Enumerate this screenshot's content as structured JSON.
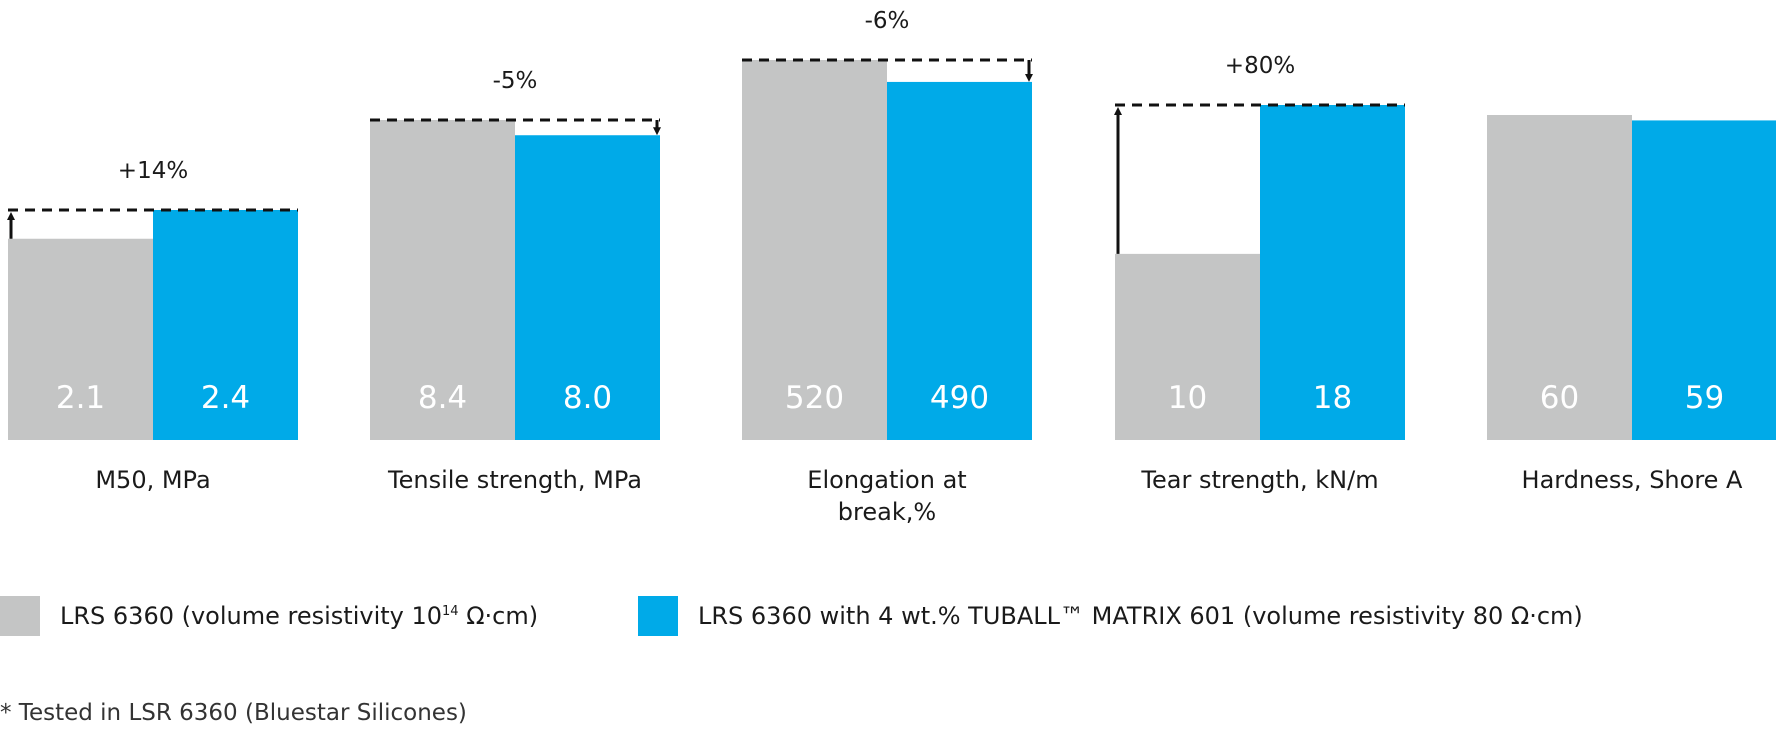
{
  "chart_data": {
    "type": "bar",
    "categories": [
      "M50, MPa",
      "Tensile strength, MPa",
      "Elongation at break,%",
      "Tear strength, kN/m",
      "Hardness, Shore A"
    ],
    "category_lines": [
      [
        "M50, MPa"
      ],
      [
        "Tensile strength, MPa"
      ],
      [
        "Elongation at",
        "break,%"
      ],
      [
        "Tear strength, kN/m"
      ],
      [
        "Hardness, Shore A"
      ]
    ],
    "series": [
      {
        "name": "LRS 6360 (volume resistivity 10",
        "name_sup": "14",
        "name_tail": " Ω·cm)",
        "color": "#c4c5c5",
        "values": [
          2.1,
          8.4,
          520,
          10,
          60
        ],
        "labels": [
          "2.1",
          "8.4",
          "520",
          "10",
          "60"
        ]
      },
      {
        "name": "LRS 6360 with 4 wt.% TUBALL™ MATRIX 601 (volume resistivity 80 Ω·cm)",
        "color": "#00aae8",
        "values": [
          2.4,
          8.0,
          490,
          18,
          59
        ],
        "labels": [
          "2.4",
          "8.0",
          "490",
          "18",
          "59"
        ]
      }
    ],
    "changes": [
      "+14%",
      "-5%",
      "-6%",
      "+80%",
      ""
    ],
    "legend_position": "bottom-left",
    "grid": false
  },
  "footnote": "* Tested in LSR 6360 (Bluestar Silicones)"
}
